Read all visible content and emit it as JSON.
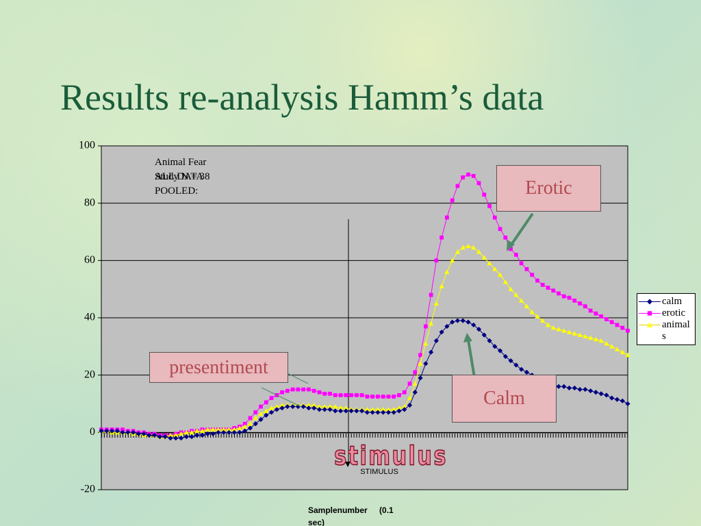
{
  "chart_data": {
    "type": "line",
    "title": "Results re-analysis Hamm’s data",
    "x_label": "Samplenumber (0.1 sec)",
    "ylim": [
      -20,
      100
    ],
    "yticks": [
      -20,
      0,
      20,
      40,
      60,
      80,
      100
    ],
    "grid": true,
    "legend": "right",
    "annotations": [
      "Animal Fear Study N = 38",
      "ALL DATA POOLED:",
      "STIMULUS",
      "stimulus",
      "Erotic",
      "Calm",
      "presentiment"
    ],
    "series": [
      {
        "name": "calm",
        "color": "#000080",
        "marker": "diamond",
        "values": [
          0.5,
          0.5,
          0.5,
          0.5,
          0,
          0,
          0,
          -0.5,
          -0.5,
          -1,
          -1,
          -1.5,
          -1.5,
          -2,
          -2,
          -2,
          -1.5,
          -1.5,
          -1,
          -1,
          -0.5,
          -0.5,
          0,
          0,
          0,
          0,
          0,
          0.5,
          1.5,
          3,
          4.5,
          6,
          7,
          8,
          8.5,
          9,
          9,
          9,
          9,
          8.5,
          8.5,
          8,
          8,
          8,
          7.5,
          7.5,
          7.5,
          7.5,
          7.5,
          7.5,
          7,
          7,
          7,
          7,
          7,
          7,
          7.5,
          8,
          9.5,
          14,
          19,
          24,
          28,
          32,
          35,
          37,
          38.5,
          39,
          39,
          38.5,
          37.5,
          36,
          34,
          32,
          30,
          28.5,
          26.5,
          25,
          23.5,
          22,
          21,
          20,
          19,
          18,
          17,
          16.5,
          16,
          16,
          15.5,
          15.5,
          15,
          15,
          14.5,
          14,
          13.5,
          13,
          12,
          11.5,
          11,
          10
        ]
      },
      {
        "name": "erotic",
        "color": "#ff00ff",
        "marker": "square",
        "values": [
          1,
          1,
          1,
          1,
          1,
          0.5,
          0.5,
          0,
          0,
          -0.5,
          -0.5,
          -1,
          -1,
          -1,
          -0.5,
          0,
          0,
          0.5,
          0.5,
          1,
          1,
          1,
          1,
          1,
          1,
          1.5,
          2,
          3,
          5,
          7,
          9,
          10.5,
          12,
          13,
          14,
          14.5,
          15,
          15,
          15,
          15,
          14.5,
          14,
          13.5,
          13.5,
          13,
          13,
          13,
          13,
          13,
          13,
          12.5,
          12.5,
          12.5,
          12.5,
          12.5,
          12.5,
          13,
          14,
          17,
          21,
          27,
          37,
          48,
          60,
          68,
          75,
          81,
          86,
          89,
          90,
          89.5,
          87,
          83,
          79,
          75,
          71,
          68,
          64,
          62,
          59,
          57,
          55,
          53,
          51.5,
          50.5,
          49.5,
          48.5,
          47.5,
          47,
          46,
          45,
          44,
          42.5,
          41.5,
          40.5,
          39.5,
          38.5,
          37.5,
          36.5,
          35.5
        ]
      },
      {
        "name": "animals",
        "color": "#ffff00",
        "marker": "triangle",
        "values": [
          0.5,
          0.5,
          0,
          0,
          0,
          0,
          -0.5,
          -0.5,
          -1,
          -1,
          -1,
          -1.5,
          -1.5,
          -1,
          -1,
          -0.5,
          0,
          0,
          0.5,
          0.5,
          1,
          1,
          1,
          1,
          1,
          1,
          1.5,
          2,
          3,
          5,
          6.5,
          7.5,
          8.5,
          9,
          9.5,
          9.5,
          9.5,
          9.5,
          9.5,
          9.5,
          9.5,
          9,
          9,
          9,
          9,
          8.5,
          8.5,
          8,
          8,
          8,
          8,
          8,
          8,
          8,
          8,
          8,
          8.5,
          9,
          12,
          17,
          24,
          31,
          38,
          45,
          51,
          56,
          60,
          63,
          64.5,
          65,
          64.5,
          63,
          61,
          59,
          57,
          55,
          52.5,
          50,
          48,
          46,
          44,
          42,
          40.5,
          39,
          37.5,
          36.5,
          36,
          35.5,
          35,
          34.5,
          34,
          33.5,
          33,
          32.5,
          32,
          31,
          30,
          29,
          28,
          27
        ]
      }
    ]
  }
}
